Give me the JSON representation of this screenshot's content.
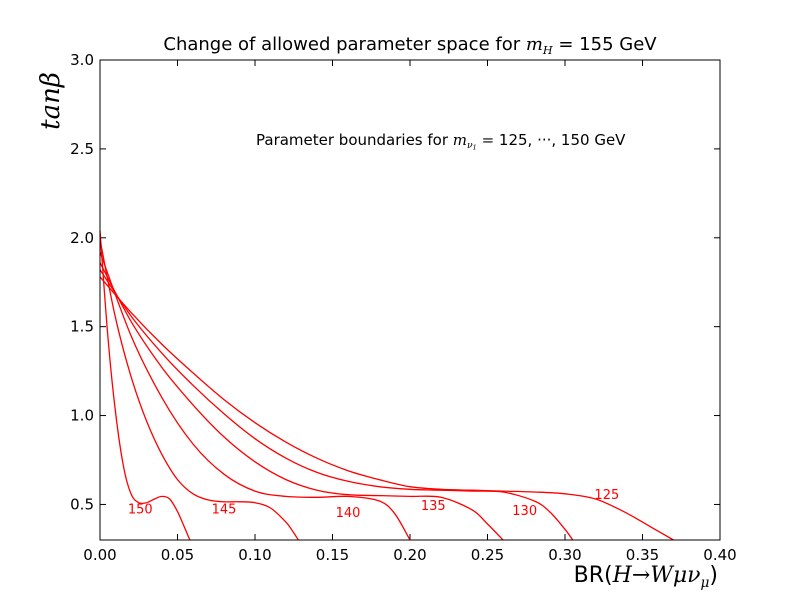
{
  "chart_data": {
    "type": "line",
    "title_prefix": "Change of allowed parameter space for ",
    "title_math_base": "m",
    "title_math_sub": "H",
    "title_suffix": " = 155 GeV",
    "annotation_prefix": "Parameter boundaries for ",
    "annotation_math_base": "m",
    "annotation_math_sub": "ν",
    "annotation_math_subsub": "1",
    "annotation_equals": " = ",
    "annotation_suffix": " 125, ···, 150 GeV",
    "xlabel_prefix": "BR(",
    "xlabel_math": "H→Wμν",
    "xlabel_math_sub": "μ",
    "xlabel_suffix": ")",
    "ylabel": "tanβ",
    "xlim": [
      0.0,
      0.4
    ],
    "ylim": [
      0.3,
      3.0
    ],
    "xticks": [
      "0.00",
      "0.05",
      "0.10",
      "0.15",
      "0.20",
      "0.25",
      "0.30",
      "0.35",
      "0.40"
    ],
    "yticks": [
      "0.5",
      "1.0",
      "1.5",
      "2.0",
      "2.5",
      "3.0"
    ],
    "line_color": "#ff0000",
    "series": [
      {
        "name": "125",
        "label_pos": [
          0.327,
          0.53
        ],
        "x": [
          0.0,
          0.02,
          0.04,
          0.06,
          0.08,
          0.1,
          0.12,
          0.14,
          0.16,
          0.18,
          0.2,
          0.22,
          0.24,
          0.26,
          0.28,
          0.3,
          0.32,
          0.34,
          0.36,
          0.37
        ],
        "y": [
          1.78,
          1.58,
          1.4,
          1.24,
          1.09,
          0.96,
          0.85,
          0.76,
          0.69,
          0.64,
          0.6,
          0.585,
          0.58,
          0.575,
          0.57,
          0.56,
          0.53,
          0.45,
          0.35,
          0.3
        ]
      },
      {
        "name": "130",
        "label_pos": [
          0.274,
          0.44
        ],
        "x": [
          0.0,
          0.02,
          0.04,
          0.06,
          0.08,
          0.1,
          0.12,
          0.14,
          0.16,
          0.18,
          0.2,
          0.22,
          0.24,
          0.26,
          0.28,
          0.29,
          0.3,
          0.305
        ],
        "y": [
          1.82,
          1.56,
          1.35,
          1.17,
          1.01,
          0.87,
          0.76,
          0.68,
          0.63,
          0.6,
          0.585,
          0.58,
          0.575,
          0.57,
          0.52,
          0.46,
          0.36,
          0.3
        ]
      },
      {
        "name": "135",
        "label_pos": [
          0.215,
          0.47
        ],
        "x": [
          0.0,
          0.02,
          0.04,
          0.06,
          0.08,
          0.1,
          0.12,
          0.14,
          0.16,
          0.18,
          0.2,
          0.22,
          0.24,
          0.25,
          0.26
        ],
        "y": [
          1.86,
          1.53,
          1.27,
          1.06,
          0.88,
          0.74,
          0.64,
          0.58,
          0.555,
          0.55,
          0.545,
          0.54,
          0.47,
          0.39,
          0.3
        ]
      },
      {
        "name": "140",
        "label_pos": [
          0.16,
          0.43
        ],
        "x": [
          0.0,
          0.02,
          0.04,
          0.06,
          0.08,
          0.1,
          0.12,
          0.14,
          0.16,
          0.18,
          0.19,
          0.2
        ],
        "y": [
          1.92,
          1.45,
          1.1,
          0.84,
          0.67,
          0.575,
          0.545,
          0.54,
          0.545,
          0.52,
          0.45,
          0.3
        ]
      },
      {
        "name": "145",
        "label_pos": [
          0.08,
          0.45
        ],
        "x": [
          0.0,
          0.01,
          0.02,
          0.03,
          0.04,
          0.05,
          0.06,
          0.07,
          0.08,
          0.09,
          0.1,
          0.11,
          0.12,
          0.125,
          0.128
        ],
        "y": [
          1.99,
          1.55,
          1.22,
          0.97,
          0.78,
          0.64,
          0.56,
          0.525,
          0.515,
          0.515,
          0.51,
          0.48,
          0.4,
          0.34,
          0.3
        ]
      },
      {
        "name": "150",
        "label_pos": [
          0.026,
          0.45
        ],
        "x": [
          0.0,
          0.005,
          0.01,
          0.015,
          0.02,
          0.025,
          0.03,
          0.035,
          0.04,
          0.045,
          0.05,
          0.055,
          0.058
        ],
        "y": [
          2.04,
          1.45,
          1.02,
          0.72,
          0.56,
          0.51,
          0.51,
          0.53,
          0.545,
          0.53,
          0.46,
          0.36,
          0.3
        ]
      }
    ]
  }
}
